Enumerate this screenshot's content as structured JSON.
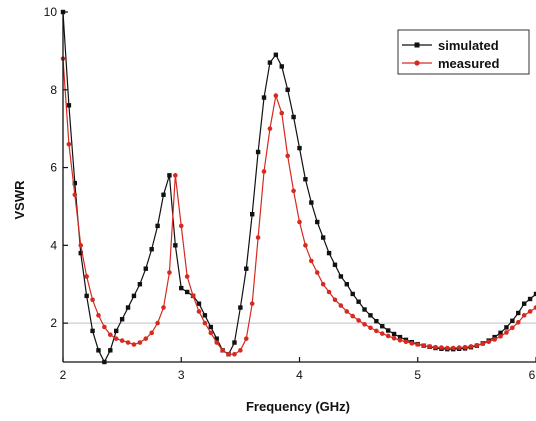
{
  "chart_data": {
    "type": "line",
    "xlabel": "Frequency (GHz)",
    "ylabel": "VSWR",
    "xlim": [
      2,
      6
    ],
    "ylim": [
      1,
      10
    ],
    "x_ticks": [
      2,
      3,
      4,
      5,
      6
    ],
    "y_ticks": [
      2,
      4,
      6,
      8,
      10
    ],
    "x_tick_labels": [
      "2",
      "3",
      "4",
      "5",
      "6"
    ],
    "y_tick_labels": [
      "2",
      "4",
      "6",
      "8",
      "10"
    ],
    "reference_line": {
      "y": 2,
      "color": "#c9ced6"
    },
    "legend_position": "top-right",
    "grid": false,
    "series": [
      {
        "name": "simulated",
        "color": "#111111",
        "marker": "square",
        "x": [
          2.0,
          2.05,
          2.1,
          2.15,
          2.2,
          2.25,
          2.3,
          2.35,
          2.4,
          2.45,
          2.5,
          2.55,
          2.6,
          2.65,
          2.7,
          2.75,
          2.8,
          2.85,
          2.9,
          2.95,
          3.0,
          3.05,
          3.1,
          3.15,
          3.2,
          3.25,
          3.3,
          3.35,
          3.4,
          3.45,
          3.5,
          3.55,
          3.6,
          3.65,
          3.7,
          3.75,
          3.8,
          3.85,
          3.9,
          3.95,
          4.0,
          4.05,
          4.1,
          4.15,
          4.2,
          4.25,
          4.3,
          4.35,
          4.4,
          4.45,
          4.5,
          4.55,
          4.6,
          4.65,
          4.7,
          4.75,
          4.8,
          4.85,
          4.9,
          4.95,
          5.0,
          5.05,
          5.1,
          5.15,
          5.2,
          5.25,
          5.3,
          5.35,
          5.4,
          5.45,
          5.5,
          5.55,
          5.6,
          5.65,
          5.7,
          5.75,
          5.8,
          5.85,
          5.9,
          5.95,
          6.0
        ],
        "y": [
          10.0,
          7.6,
          5.6,
          3.8,
          2.7,
          1.8,
          1.3,
          1.0,
          1.3,
          1.8,
          2.1,
          2.4,
          2.7,
          3.0,
          3.4,
          3.9,
          4.5,
          5.3,
          5.8,
          4.0,
          2.9,
          2.8,
          2.7,
          2.5,
          2.2,
          1.9,
          1.6,
          1.3,
          1.2,
          1.5,
          2.4,
          3.4,
          4.8,
          6.4,
          7.8,
          8.7,
          8.9,
          8.6,
          8.0,
          7.3,
          6.5,
          5.7,
          5.1,
          4.6,
          4.2,
          3.8,
          3.5,
          3.2,
          3.0,
          2.75,
          2.55,
          2.35,
          2.2,
          2.05,
          1.92,
          1.81,
          1.72,
          1.64,
          1.57,
          1.51,
          1.46,
          1.42,
          1.39,
          1.36,
          1.34,
          1.33,
          1.33,
          1.34,
          1.35,
          1.38,
          1.42,
          1.48,
          1.55,
          1.64,
          1.75,
          1.89,
          2.06,
          2.26,
          2.5,
          2.62,
          2.75
        ]
      },
      {
        "name": "measured",
        "color": "#d62a20",
        "marker": "circle",
        "x": [
          2.0,
          2.05,
          2.1,
          2.15,
          2.2,
          2.25,
          2.3,
          2.35,
          2.4,
          2.45,
          2.5,
          2.55,
          2.6,
          2.65,
          2.7,
          2.75,
          2.8,
          2.85,
          2.9,
          2.95,
          3.0,
          3.05,
          3.1,
          3.15,
          3.2,
          3.25,
          3.3,
          3.35,
          3.4,
          3.45,
          3.5,
          3.55,
          3.6,
          3.65,
          3.7,
          3.75,
          3.8,
          3.85,
          3.9,
          3.95,
          4.0,
          4.05,
          4.1,
          4.15,
          4.2,
          4.25,
          4.3,
          4.35,
          4.4,
          4.45,
          4.5,
          4.55,
          4.6,
          4.65,
          4.7,
          4.75,
          4.8,
          4.85,
          4.9,
          4.95,
          5.0,
          5.05,
          5.1,
          5.15,
          5.2,
          5.25,
          5.3,
          5.35,
          5.4,
          5.45,
          5.5,
          5.55,
          5.6,
          5.65,
          5.7,
          5.75,
          5.8,
          5.85,
          5.9,
          5.95,
          6.0
        ],
        "y": [
          8.8,
          6.6,
          5.3,
          4.0,
          3.2,
          2.6,
          2.2,
          1.9,
          1.7,
          1.6,
          1.55,
          1.5,
          1.45,
          1.5,
          1.6,
          1.75,
          2.0,
          2.4,
          3.3,
          5.8,
          4.5,
          3.2,
          2.7,
          2.3,
          2.0,
          1.75,
          1.5,
          1.3,
          1.2,
          1.2,
          1.3,
          1.6,
          2.5,
          4.2,
          5.9,
          7.0,
          7.85,
          7.4,
          6.3,
          5.4,
          4.6,
          4.0,
          3.6,
          3.3,
          3.0,
          2.8,
          2.6,
          2.45,
          2.3,
          2.18,
          2.07,
          1.97,
          1.88,
          1.8,
          1.73,
          1.67,
          1.61,
          1.56,
          1.52,
          1.48,
          1.45,
          1.42,
          1.4,
          1.38,
          1.37,
          1.36,
          1.36,
          1.37,
          1.38,
          1.4,
          1.43,
          1.47,
          1.52,
          1.58,
          1.66,
          1.76,
          1.88,
          2.02,
          2.2,
          2.3,
          2.4
        ]
      }
    ]
  }
}
